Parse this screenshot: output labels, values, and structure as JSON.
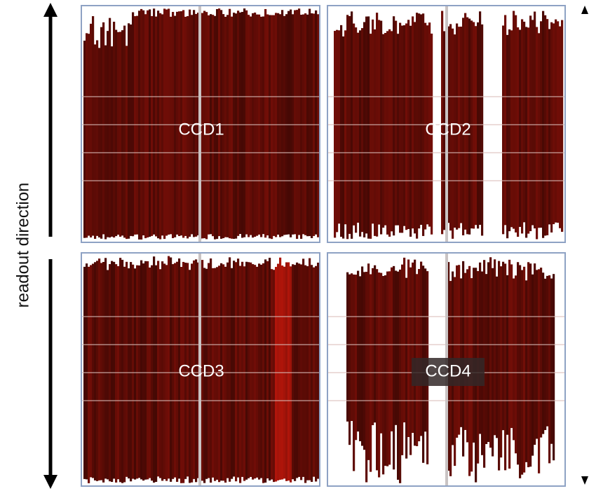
{
  "axis_label": "readout direction",
  "panels": [
    {
      "label": "CCD1"
    },
    {
      "label": "CCD2"
    },
    {
      "label": "CCD3"
    },
    {
      "label": "CCD4"
    }
  ]
}
